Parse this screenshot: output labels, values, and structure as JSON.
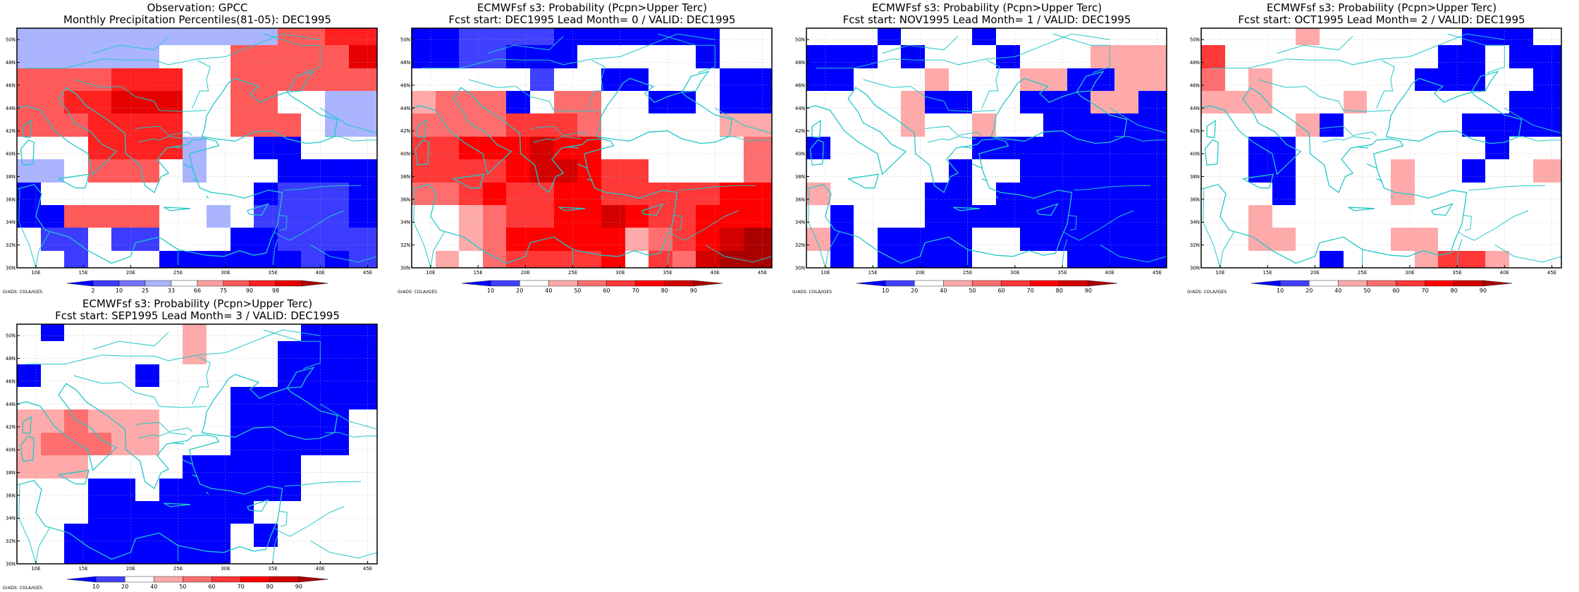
{
  "colors": {
    "coast": "#22c7c7",
    "grid": "#aaaaaa",
    "obs_scale": [
      "#0000ff",
      "#3c3cff",
      "#7373ff",
      "#aab4ff",
      "#ffffff",
      "#ffa0a0",
      "#ff5a5a",
      "#ff2020",
      "#e60000",
      "#aa0000"
    ],
    "fc_scale": [
      "#0000ff",
      "#4040ff",
      "#ffffff",
      "#ffaaaa",
      "#ff6e6e",
      "#ff3838",
      "#ff0000",
      "#d40000",
      "#aa0000"
    ]
  },
  "map": {
    "lon_range": [
      8,
      46
    ],
    "lat_range": [
      30,
      51
    ],
    "lon_ticks": [
      "10E",
      "15E",
      "20E",
      "25E",
      "30E",
      "35E",
      "40E",
      "45E"
    ],
    "lat_ticks": [
      "30N",
      "32N",
      "34N",
      "36N",
      "38N",
      "40N",
      "42N",
      "44N",
      "46N",
      "48N",
      "50N"
    ],
    "grid_lon": [
      10,
      15,
      20,
      25,
      30,
      35,
      40,
      45
    ],
    "grid_lat": [
      30,
      32,
      34,
      36,
      38,
      40,
      42,
      44,
      46,
      48,
      50
    ],
    "cell_lon_edges": [
      8.0,
      10.5,
      13.0,
      15.5,
      18.0,
      20.5,
      23.0,
      25.5,
      28.0,
      30.5,
      33.0,
      35.5,
      38.0,
      40.5,
      43.0,
      46.0
    ],
    "cell_lat_edges": [
      30.0,
      31.5,
      33.5,
      35.5,
      37.5,
      39.5,
      41.5,
      43.5,
      45.5,
      47.5,
      49.5,
      51.0
    ],
    "credit": "GrADS: COLA/IGES"
  },
  "panels": [
    {
      "id": "obs",
      "title_line1": "Observation: GPCC",
      "title_line2": "Monthly Precipitation Percentiles(81-05): DEC1995",
      "colorbar_labels": [
        "2",
        "10",
        "25",
        "33",
        "66",
        "75",
        "90",
        "98"
      ],
      "scale": "obs_scale",
      "rows": [
        "333333333336677",
        "333333444666668",
        "666677744666666",
        "667788844664433",
        "666777744666433",
        "444777734400444",
        "334666434440000",
        "044444444401110",
        "006666443411110",
        "411411444001111",
        "441444000000101"
      ]
    },
    {
      "id": "lead0",
      "title_line1": "ECMWFsf s3: Probability (Pcpn>Upper Terc)",
      "title_line2": "Fcst start: DEC1995  Lead Month= 0 / VALID: DEC1995",
      "colorbar_labels": [
        "10",
        "20",
        "40",
        "50",
        "60",
        "70",
        "80",
        "90"
      ],
      "scale": "fc_scale",
      "rows": [
        "001111000000022",
        "001100022222022",
        "222221220022200",
        "344402442200200",
        "444455542222233",
        "556667662222224",
        "555567765522224",
        "445655665555566",
        "223455667655666",
        "223466666345678",
        "232455556254788"
      ]
    },
    {
      "id": "lead1",
      "title_line1": "ECMWFsf s3: Probability (Pcpn>Upper Terc)",
      "title_line2": "Fcst start: NOV1995  Lead Month= 1 / VALID: DEC1995",
      "colorbar_labels": [
        "10",
        "20",
        "40",
        "50",
        "60",
        "70",
        "80",
        "90"
      ],
      "scale": "fc_scale",
      "rows": [
        "222022202222222",
        "000202220222333",
        "002223222330033",
        "222230022000330",
        "222232232200000",
        "022222200000000",
        "222222022000000",
        "322220020000000",
        "202220000000000",
        "302000022000000",
        "202000022220000"
      ]
    },
    {
      "id": "lead2",
      "title_line1": "ECMWFsf s3: Probability (Pcpn>Upper Terc)",
      "title_line2": "Fcst start: OCT1995  Lead Month= 2 / VALID: DEC1995",
      "colorbar_labels": [
        "10",
        "20",
        "40",
        "50",
        "60",
        "70",
        "80",
        "90"
      ],
      "scale": "fc_scale",
      "rows": [
        "222232222220002",
        "522222222200200",
        "423222222000220",
        "333222322222200",
        "222230222220000",
        "220022222222022",
        "220022223220223",
        "222022223222222",
        "223222222222222",
        "223322223322222",
        "222220222355322"
      ]
    },
    {
      "id": "lead3",
      "title_line1": "ECMWFsf s3: Probability (Pcpn>Upper Terc)",
      "title_line2": "Fcst start: SEP1995  Lead Month= 3 / VALID: DEC1995",
      "colorbar_labels": [
        "10",
        "20",
        "40",
        "50",
        "60",
        "70",
        "80",
        "90"
      ],
      "scale": "fc_scale",
      "rows": [
        "202222232222000",
        "222222232220000",
        "022220222220000",
        "222222222000000",
        "334333222000002",
        "344433222000002",
        "333222200000222",
        "222002000000222",
        "222000000022222",
        "220000000202222",
        "220000000222222"
      ]
    }
  ]
}
